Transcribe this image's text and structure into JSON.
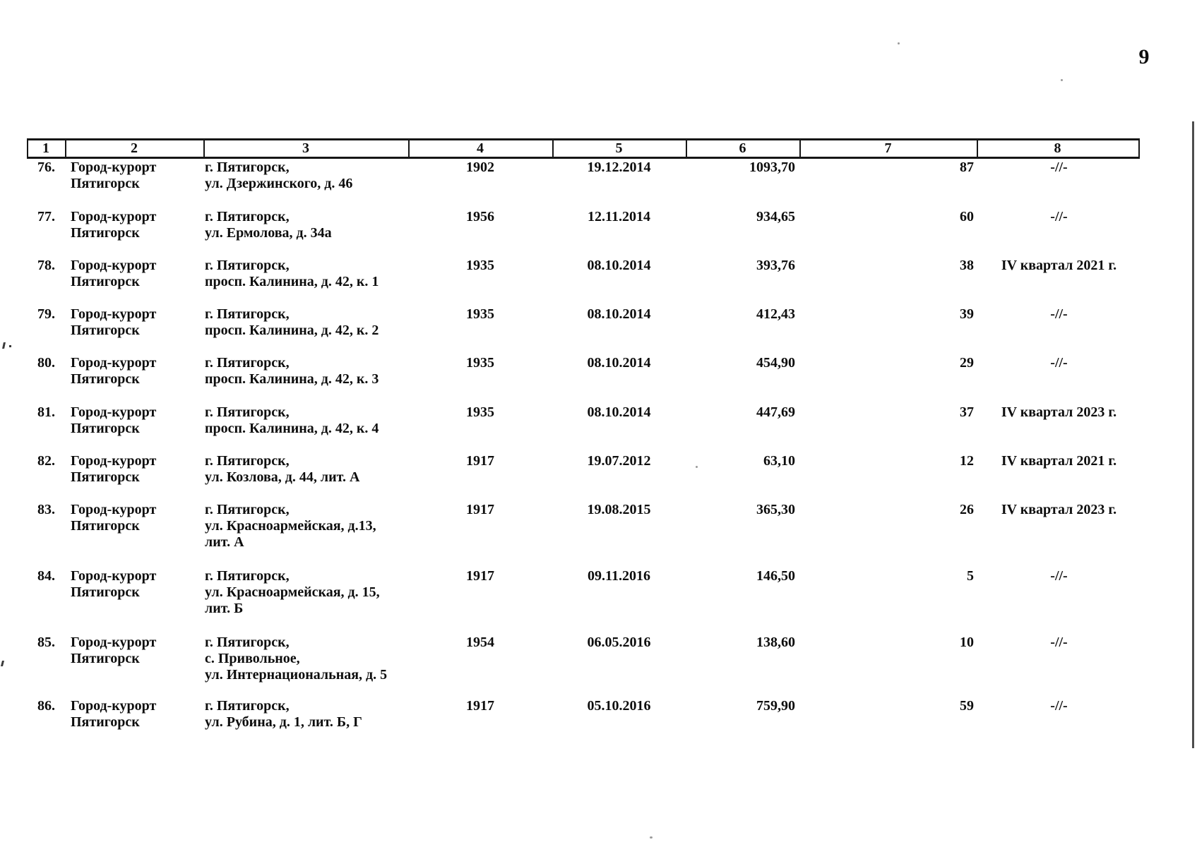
{
  "page": {
    "number": "9"
  },
  "table": {
    "header_columns": [
      "1",
      "2",
      "3",
      "4",
      "5",
      "6",
      "7",
      "8"
    ],
    "rows": [
      {
        "number": "76.",
        "municipality": [
          "Город-курорт",
          "Пятигорск"
        ],
        "address": [
          "г. Пятигорск,",
          "ул. Дзержинского, д. 46"
        ],
        "year": "1902",
        "date": "19.12.2014",
        "area": "1093,70",
        "count": "87",
        "period": "-//-"
      },
      {
        "number": "77.",
        "municipality": [
          "Город-курорт",
          "Пятигорск"
        ],
        "address": [
          "г. Пятигорск,",
          "ул. Ермолова, д. 34а"
        ],
        "year": "1956",
        "date": "12.11.2014",
        "area": "934,65",
        "count": "60",
        "period": "-//-"
      },
      {
        "number": "78.",
        "municipality": [
          "Город-курорт",
          "Пятигорск"
        ],
        "address": [
          "г. Пятигорск,",
          "просп. Калинина, д. 42, к. 1"
        ],
        "year": "1935",
        "date": "08.10.2014",
        "area": "393,76",
        "count": "38",
        "period": "IV квартал 2021 г."
      },
      {
        "number": "79.",
        "municipality": [
          "Город-курорт",
          "Пятигорск"
        ],
        "address": [
          "г. Пятигорск,",
          "просп. Калинина, д. 42, к. 2"
        ],
        "year": "1935",
        "date": "08.10.2014",
        "area": "412,43",
        "count": "39",
        "period": "-//-"
      },
      {
        "number": "80.",
        "municipality": [
          "Город-курорт",
          "Пятигорск"
        ],
        "address": [
          "г. Пятигорск,",
          "просп. Калинина, д. 42, к. 3"
        ],
        "year": "1935",
        "date": "08.10.2014",
        "area": "454,90",
        "count": "29",
        "period": "-//-"
      },
      {
        "number": "81.",
        "municipality": [
          "Город-курорт",
          "Пятигорск"
        ],
        "address": [
          "г. Пятигорск,",
          "просп. Калинина, д. 42, к. 4"
        ],
        "year": "1935",
        "date": "08.10.2014",
        "area": "447,69",
        "count": "37",
        "period": "IV квартал 2023 г."
      },
      {
        "number": "82.",
        "municipality": [
          "Город-курорт",
          "Пятигорск"
        ],
        "address": [
          "г. Пятигорск,",
          "ул. Козлова, д. 44, лит. А"
        ],
        "year": "1917",
        "date": "19.07.2012",
        "area": "63,10",
        "count": "12",
        "period": "IV квартал 2021 г."
      },
      {
        "number": "83.",
        "municipality": [
          "Город-курорт",
          "Пятигорск"
        ],
        "address": [
          "г. Пятигорск,",
          "ул. Красноармейская, д.13,",
          "лит. А"
        ],
        "year": "1917",
        "date": "19.08.2015",
        "area": "365,30",
        "count": "26",
        "period": "IV квартал 2023 г."
      },
      {
        "number": "84.",
        "municipality": [
          "Город-курорт",
          "Пятигорск"
        ],
        "address": [
          "г. Пятигорск,",
          "ул. Красноармейская, д. 15,",
          "лит. Б"
        ],
        "year": "1917",
        "date": "09.11.2016",
        "area": "146,50",
        "count": "5",
        "period": "-//-"
      },
      {
        "number": "85.",
        "municipality": [
          "Город-курорт",
          "Пятигорск"
        ],
        "address": [
          "г. Пятигорск,",
          "с. Привольное,",
          "ул. Интернациональная, д. 5"
        ],
        "year": "1954",
        "date": "06.05.2016",
        "area": "138,60",
        "count": "10",
        "period": "-//-"
      },
      {
        "number": "86.",
        "municipality": [
          "Город-курорт",
          "Пятигорск"
        ],
        "address": [
          "г. Пятигорск,",
          "ул. Рубина, д. 1, лит. Б, Г"
        ],
        "year": "1917",
        "date": "05.10.2016",
        "area": "759,90",
        "count": "59",
        "period": "-//-"
      }
    ]
  }
}
